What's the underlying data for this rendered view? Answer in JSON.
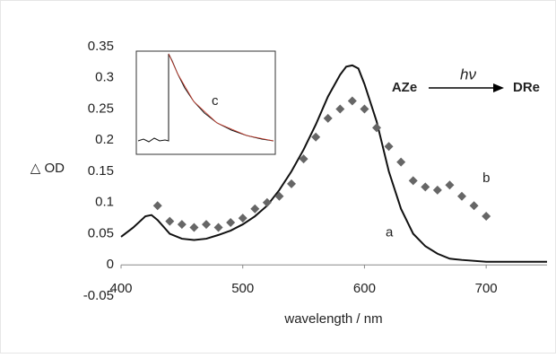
{
  "chart_data": {
    "type": "line",
    "y_label": "△ OD",
    "x_label": "wavelength / nm",
    "xlim": [
      400,
      750
    ],
    "xticks": [
      400,
      500,
      600,
      700
    ],
    "ylim": [
      -0.05,
      0.35
    ],
    "yticks": [
      -0.05,
      0,
      0.05,
      0.1,
      0.15,
      0.2,
      0.25,
      0.3,
      0.35
    ],
    "grid": false,
    "series": [
      {
        "name": "a",
        "mode": "line",
        "color": "#111111",
        "x": [
          400,
          410,
          420,
          425,
          430,
          440,
          450,
          460,
          470,
          480,
          490,
          500,
          510,
          520,
          530,
          540,
          550,
          560,
          570,
          580,
          585,
          590,
          595,
          600,
          610,
          620,
          630,
          640,
          650,
          660,
          670,
          680,
          700,
          720,
          750
        ],
        "values": [
          0.045,
          0.06,
          0.078,
          0.08,
          0.072,
          0.05,
          0.042,
          0.04,
          0.042,
          0.048,
          0.055,
          0.065,
          0.078,
          0.095,
          0.12,
          0.15,
          0.185,
          0.225,
          0.27,
          0.305,
          0.318,
          0.32,
          0.315,
          0.29,
          0.23,
          0.15,
          0.09,
          0.05,
          0.03,
          0.018,
          0.01,
          0.008,
          0.005,
          0.005,
          0.005
        ]
      },
      {
        "name": "b",
        "mode": "markers",
        "color": "#666666",
        "x": [
          430,
          440,
          450,
          460,
          470,
          480,
          490,
          500,
          510,
          520,
          530,
          540,
          550,
          560,
          570,
          580,
          590,
          600,
          610,
          620,
          630,
          640,
          650,
          660,
          670,
          680,
          690,
          700
        ],
        "values": [
          0.095,
          0.07,
          0.065,
          0.06,
          0.065,
          0.06,
          0.068,
          0.075,
          0.09,
          0.1,
          0.11,
          0.13,
          0.17,
          0.205,
          0.235,
          0.25,
          0.263,
          0.25,
          0.22,
          0.19,
          0.165,
          0.135,
          0.125,
          0.12,
          0.128,
          0.11,
          0.095,
          0.078
        ]
      }
    ],
    "annotations": {
      "reactant": "AZe",
      "light": "hν",
      "product": "DRe",
      "inset": "c"
    }
  }
}
